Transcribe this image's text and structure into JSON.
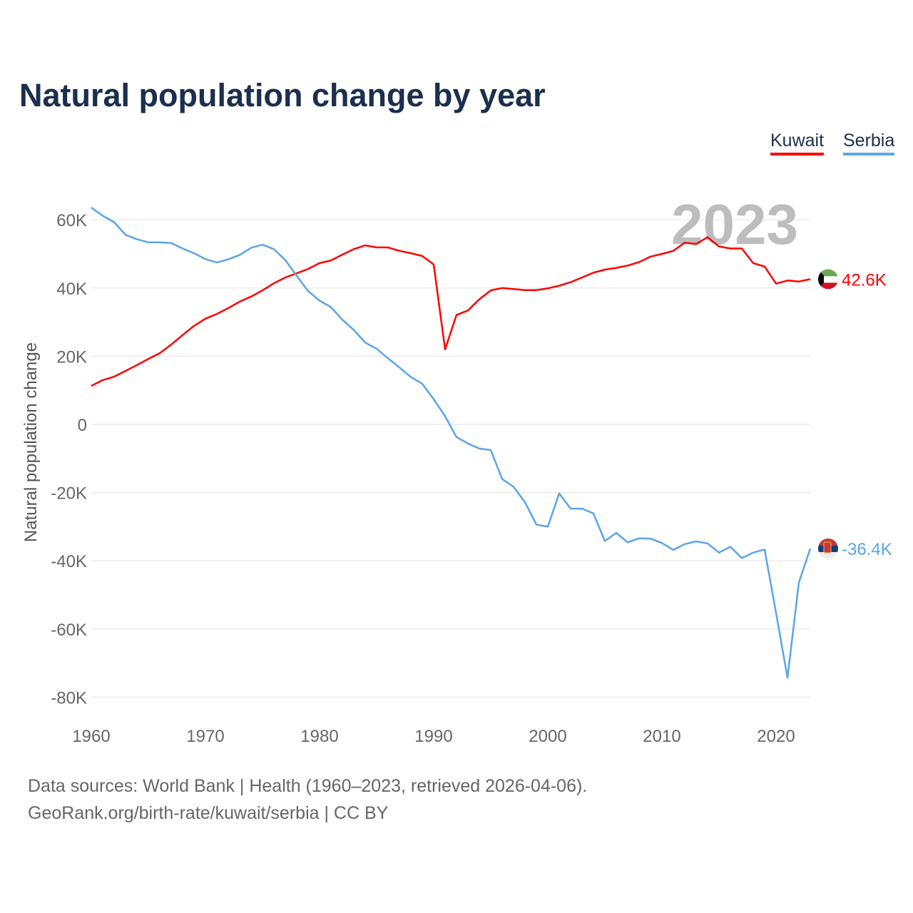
{
  "chart_data": {
    "type": "line",
    "title": "Natural population change by year",
    "xlabel": "",
    "ylabel": "Natural population change",
    "xlim": [
      1960,
      2023
    ],
    "ylim": [
      -80000,
      60000
    ],
    "grid": true,
    "legend_placement": "top-right",
    "watermark_year": "2023",
    "x_ticks": [
      "1960",
      "1970",
      "1980",
      "1990",
      "2000",
      "2010",
      "2020"
    ],
    "y_ticks": [
      {
        "value": 60000,
        "label": "60K"
      },
      {
        "value": 40000,
        "label": "40K"
      },
      {
        "value": 20000,
        "label": "20K"
      },
      {
        "value": 0,
        "label": "0"
      },
      {
        "value": -20000,
        "label": "-20K"
      },
      {
        "value": -40000,
        "label": "-40K"
      },
      {
        "value": -60000,
        "label": "-60K"
      },
      {
        "value": -80000,
        "label": "-80K"
      }
    ],
    "x_start": 1960,
    "series": [
      {
        "name": "Kuwait",
        "color": "#ff0000",
        "end_label": "42.6K",
        "flag": "kuwait-flag",
        "values_k": [
          11.3,
          13.0,
          14.0,
          15.7,
          17.4,
          19.2,
          20.9,
          23.4,
          26.2,
          28.9,
          31.0,
          32.4,
          34.1,
          36.0,
          37.5,
          39.3,
          41.4,
          43.1,
          44.3,
          45.6,
          47.3,
          48.1,
          49.8,
          51.4,
          52.5,
          51.9,
          51.9,
          50.9,
          50.2,
          49.4,
          46.9,
          22.0,
          32.1,
          33.4,
          36.7,
          39.3,
          40.0,
          39.7,
          39.4,
          39.4,
          39.9,
          40.7,
          41.7,
          43.1,
          44.5,
          45.4,
          45.9,
          46.6,
          47.6,
          49.2,
          50.0,
          50.9,
          53.3,
          52.9,
          54.9,
          52.2,
          51.6,
          51.6,
          47.3,
          46.3,
          41.3,
          42.2,
          41.9,
          42.6
        ]
      },
      {
        "name": "Serbia",
        "color": "#5aa5e8",
        "end_label": "-36.4K",
        "flag": "serbia-flag",
        "values_k": [
          63.6,
          61.2,
          59.3,
          55.6,
          54.3,
          53.4,
          53.4,
          53.2,
          51.6,
          50.2,
          48.5,
          47.5,
          48.4,
          49.7,
          51.8,
          52.7,
          51.4,
          48.2,
          43.6,
          39.1,
          36.3,
          34.4,
          30.7,
          27.7,
          24.0,
          22.2,
          19.4,
          16.7,
          13.9,
          11.9,
          7.4,
          2.4,
          -3.7,
          -5.6,
          -7.1,
          -7.5,
          -16.0,
          -18.3,
          -22.8,
          -29.4,
          -30.0,
          -20.2,
          -24.7,
          -24.7,
          -26.1,
          -34.2,
          -31.8,
          -34.6,
          -33.4,
          -33.5,
          -34.8,
          -36.8,
          -35.1,
          -34.3,
          -34.9,
          -37.6,
          -35.9,
          -39.2,
          -37.6,
          -36.7,
          -55.3,
          -74.3,
          -46.4,
          -36.4
        ]
      }
    ]
  },
  "footer": {
    "line1": "Data sources: World Bank | Health (1960–2023, retrieved 2026-04-06).",
    "line2": "GeoRank.org/birth-rate/kuwait/serbia | CC BY"
  }
}
